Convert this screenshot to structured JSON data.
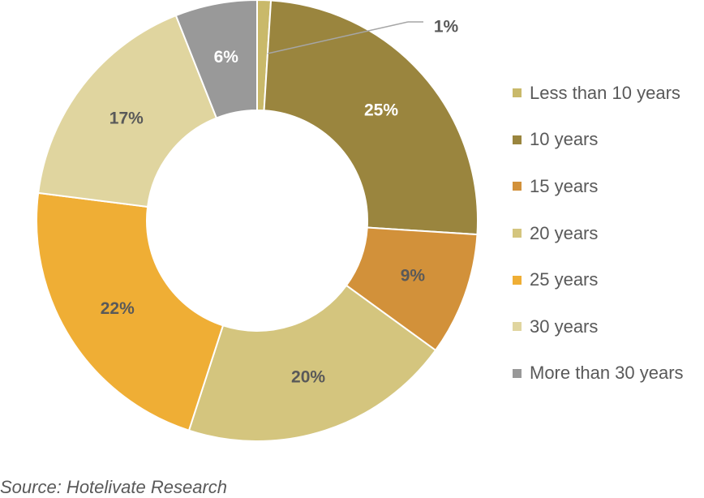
{
  "chart_data": {
    "type": "pie",
    "donut": true,
    "categories": [
      "Less than 10 years",
      "10 years",
      "15 years",
      "20 years",
      "25 years",
      "30 years",
      "More than 30 years"
    ],
    "values": [
      1,
      25,
      9,
      20,
      22,
      17,
      6
    ],
    "labels": [
      "1%",
      "25%",
      "9%",
      "20%",
      "22%",
      "17%",
      "6%"
    ],
    "colors": [
      "#c9b96a",
      "#9a853e",
      "#d2913a",
      "#d4c57e",
      "#efae35",
      "#e0d59f",
      "#999999"
    ],
    "label_colors": [
      "#595959",
      "#ffffff",
      "#595959",
      "#595959",
      "#595959",
      "#595959",
      "#ffffff"
    ],
    "legend_position": "right",
    "source": "Source: Hotelivate Research"
  }
}
